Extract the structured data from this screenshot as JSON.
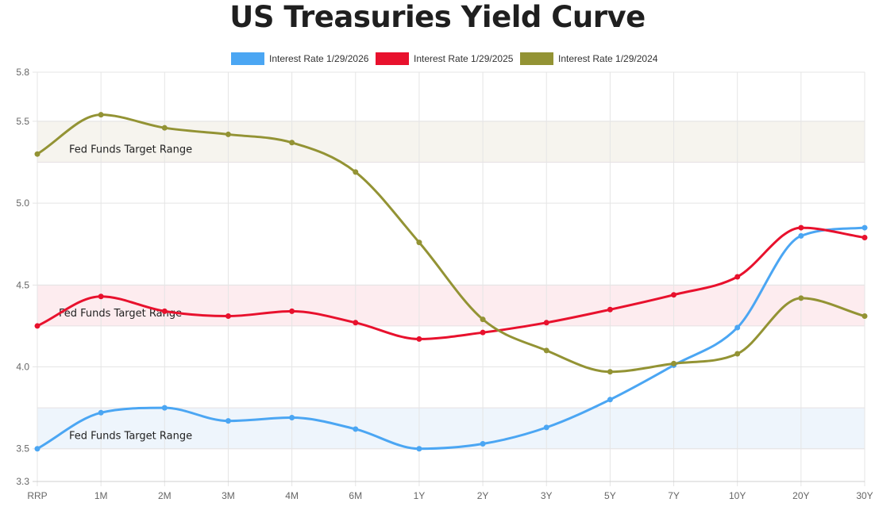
{
  "chart_data": {
    "type": "line",
    "title": "US Treasuries Yield Curve",
    "categories": [
      "RRP",
      "1M",
      "2M",
      "3M",
      "4M",
      "6M",
      "1Y",
      "2Y",
      "3Y",
      "5Y",
      "7Y",
      "10Y",
      "20Y",
      "30Y"
    ],
    "ylim": [
      3.3,
      5.8
    ],
    "yticks": [
      "3.3",
      "3.5",
      "4.0",
      "4.5",
      "5.0",
      "5.5",
      "5.8"
    ],
    "grid": true,
    "legend_position": "top-center",
    "series": [
      {
        "name": "Interest Rate 1/29/2026",
        "color": "#4ba6f3",
        "values": [
          3.5,
          3.72,
          3.75,
          3.67,
          3.69,
          3.62,
          3.5,
          3.53,
          3.63,
          3.8,
          4.01,
          4.24,
          4.8,
          4.85
        ]
      },
      {
        "name": "Interest Rate 1/29/2025",
        "color": "#e8112d",
        "values": [
          4.25,
          4.43,
          4.34,
          4.31,
          4.34,
          4.27,
          4.17,
          4.21,
          4.27,
          4.35,
          4.44,
          4.55,
          4.85,
          4.79
        ]
      },
      {
        "name": "Interest Rate 1/29/2024",
        "color": "#939334",
        "values": [
          5.3,
          5.54,
          5.46,
          5.42,
          5.37,
          5.19,
          4.76,
          4.29,
          4.1,
          3.97,
          4.02,
          4.08,
          4.42,
          4.31
        ]
      }
    ],
    "bands": [
      {
        "label": "Fed Funds Target Range",
        "from": 3.5,
        "to": 3.75,
        "color": "#eef5fc"
      },
      {
        "label": "Fed Funds Target Range",
        "from": 4.25,
        "to": 4.5,
        "color": "#fdecef"
      },
      {
        "label": "Fed Funds Target Range",
        "from": 5.25,
        "to": 5.5,
        "color": "#f6f4ee"
      }
    ]
  }
}
